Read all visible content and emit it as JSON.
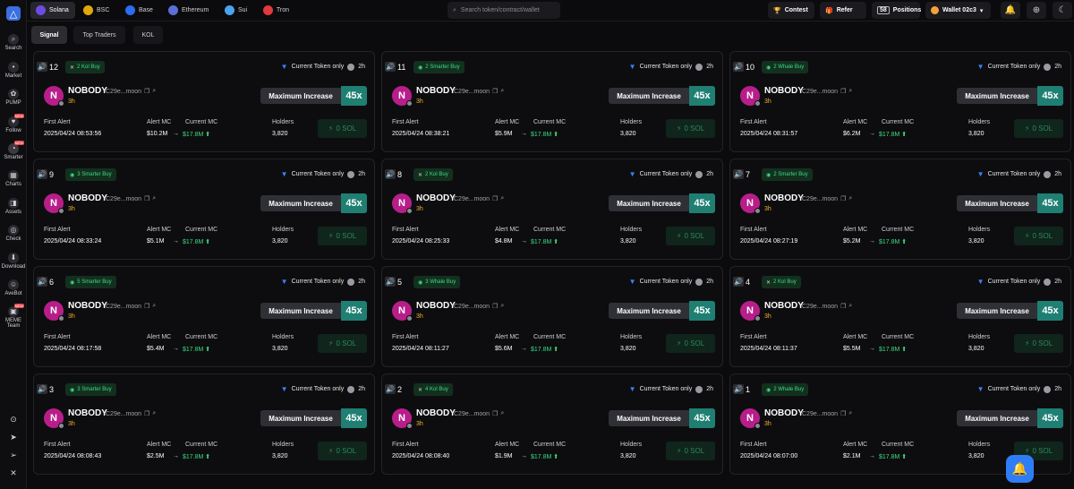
{
  "topbar": {
    "chains": [
      {
        "label": "Solana",
        "icon": "solana-icon",
        "color": "#6c4ce0"
      },
      {
        "label": "BSC",
        "icon": "bnb-icon",
        "color": "#e0a80d"
      },
      {
        "label": "Base",
        "icon": "base-icon",
        "color": "#2b6cf0"
      },
      {
        "label": "Ethereum",
        "icon": "ethereum-icon",
        "color": "#5b6fd6"
      },
      {
        "label": "Sui",
        "icon": "sui-icon",
        "color": "#4aa3ef"
      },
      {
        "label": "Tron",
        "icon": "tron-icon",
        "color": "#e03a3a"
      }
    ],
    "search_placeholder": "Search token/contract/wallet",
    "contest_label": "Contest",
    "refer_label": "Refer",
    "positions_count": "58",
    "positions_label": "Positions",
    "wallet_label": "Wallet 02c3"
  },
  "sidebar": {
    "items": [
      {
        "label": "Search",
        "icon": "search-icon",
        "glyph": "⌕"
      },
      {
        "label": "Market",
        "icon": "market-icon",
        "glyph": "▪"
      },
      {
        "label": "PUMP",
        "icon": "pump-icon",
        "glyph": "✿"
      },
      {
        "label": "Follow",
        "icon": "follow-icon",
        "glyph": "♥",
        "badge": "NEW"
      },
      {
        "label": "Smarter",
        "icon": "smarter-icon",
        "glyph": "◔",
        "badge": "NEW"
      },
      {
        "label": "Charts",
        "icon": "charts-icon",
        "glyph": "▦"
      },
      {
        "label": "Assets",
        "icon": "assets-icon",
        "glyph": "◨"
      },
      {
        "label": "Check",
        "icon": "check-icon",
        "glyph": "◎"
      },
      {
        "label": "Download",
        "icon": "download-icon",
        "glyph": "⬇"
      },
      {
        "label": "AveBot",
        "icon": "avebot-icon",
        "glyph": "☺"
      },
      {
        "label": "MEME Team",
        "icon": "meme-team-icon",
        "glyph": "▣",
        "badge": "NEW"
      }
    ]
  },
  "tabs": [
    "Signal",
    "Top Traders",
    "KOL"
  ],
  "card_common": {
    "current_token_only": "Current Token only",
    "time": "2h",
    "token_name": "NOBODY",
    "avatar_letter": "N",
    "address": "C29e...moon",
    "age": "3h",
    "max_increase_label": "Maximum Increase",
    "multiplier": "45x",
    "first_alert_label": "First Alert",
    "alert_mc_label": "Alert MC",
    "current_mc_label": "Current MC",
    "holders_label": "Holders",
    "current_mc": "$17.8M",
    "holders": "3,820",
    "sol_button": "0 SOL"
  },
  "cards": [
    {
      "count": "12",
      "badge": "2 Kol Buy",
      "badge_icon": "x",
      "first_alert": "2025/04/24 08:53:56",
      "alert_mc": "$10.2M"
    },
    {
      "count": "11",
      "badge": "2 Smarter Buy",
      "badge_icon": "smart",
      "first_alert": "2025/04/24 08:38:21",
      "alert_mc": "$5.9M"
    },
    {
      "count": "10",
      "badge": "2 Whale Buy",
      "badge_icon": "smart",
      "first_alert": "2025/04/24 08:31:57",
      "alert_mc": "$6.2M"
    },
    {
      "count": "9",
      "badge": "3 Smarter Buy",
      "badge_icon": "smart",
      "first_alert": "2025/04/24 08:33:24",
      "alert_mc": "$5.1M"
    },
    {
      "count": "8",
      "badge": "2 Kol Buy",
      "badge_icon": "x",
      "first_alert": "2025/04/24 08:25:33",
      "alert_mc": "$4.8M"
    },
    {
      "count": "7",
      "badge": "2 Smarter Buy",
      "badge_icon": "smart",
      "first_alert": "2025/04/24 08:27:19",
      "alert_mc": "$5.2M"
    },
    {
      "count": "6",
      "badge": "5 Smarter Buy",
      "badge_icon": "smart",
      "first_alert": "2025/04/24 08:17:58",
      "alert_mc": "$5.4M"
    },
    {
      "count": "5",
      "badge": "3 Whale Buy",
      "badge_icon": "smart",
      "first_alert": "2025/04/24 08:11:27",
      "alert_mc": "$5.6M"
    },
    {
      "count": "4",
      "badge": "2 Kol Buy",
      "badge_icon": "x",
      "first_alert": "2025/04/24 08:11:37",
      "alert_mc": "$5.5M"
    },
    {
      "count": "3",
      "badge": "3 Smarter Buy",
      "badge_icon": "smart",
      "first_alert": "2025/04/24 08:08:43",
      "alert_mc": "$2.5M"
    },
    {
      "count": "2",
      "badge": "4 Kol Buy",
      "badge_icon": "x",
      "first_alert": "2025/04/24 08:08:40",
      "alert_mc": "$1.9M"
    },
    {
      "count": "1",
      "badge": "2 Whale Buy",
      "badge_icon": "smart",
      "first_alert": "2025/04/24 08:07:00",
      "alert_mc": "$2.1M"
    }
  ],
  "colors": {
    "accent_green": "#3ddc84",
    "multiplier_bg": "#1f7f73",
    "age": "#f2b02e",
    "fab": "#2f7df6"
  }
}
